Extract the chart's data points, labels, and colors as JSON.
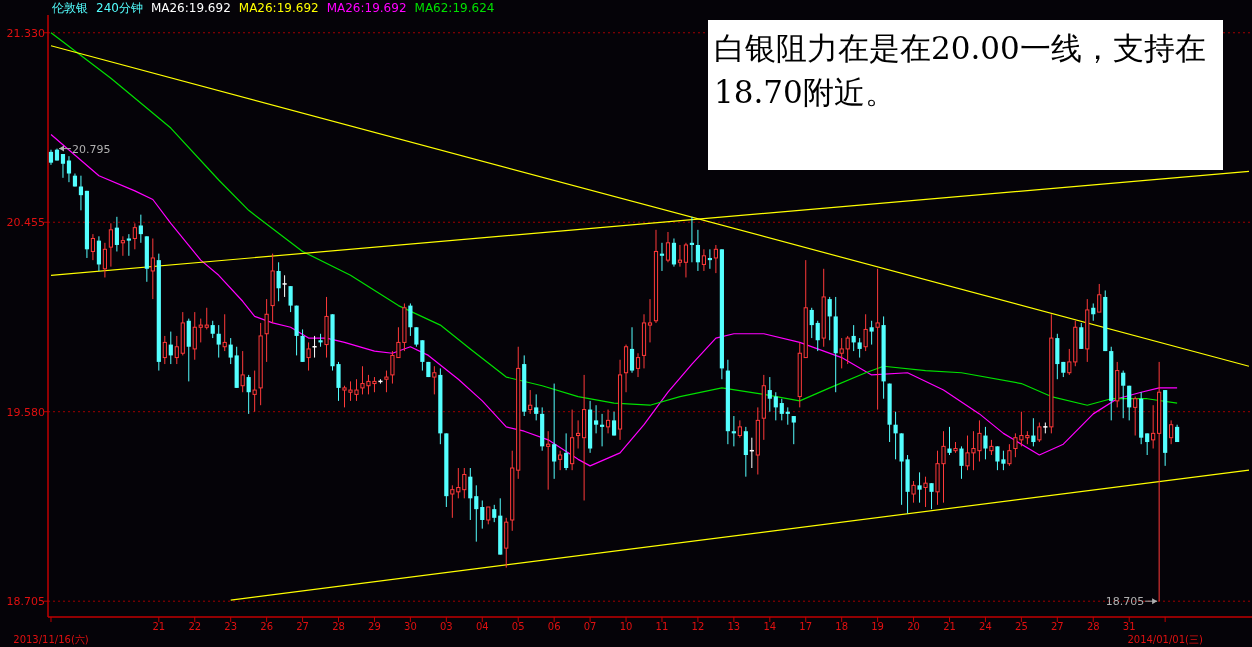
{
  "chart_data": {
    "type": "candlestick",
    "title": "伦敦银",
    "subtitle": "240分钟",
    "categories": [
      "2013/11/16(六)",
      null,
      null,
      null,
      null,
      null,
      null,
      null,
      null,
      null,
      null,
      null,
      null,
      null,
      null,
      null,
      null,
      null,
      "21",
      null,
      null,
      null,
      null,
      null,
      "22",
      null,
      null,
      null,
      null,
      null,
      "23",
      null,
      null,
      null,
      null,
      null,
      "26",
      null,
      null,
      null,
      null,
      null,
      "27",
      null,
      null,
      null,
      null,
      null,
      "28",
      null,
      null,
      null,
      null,
      null,
      "29",
      null,
      null,
      null,
      null,
      null,
      "30",
      null,
      null,
      null,
      null,
      null,
      "03",
      null,
      null,
      null,
      null,
      null,
      "04",
      null,
      null,
      null,
      null,
      null,
      "05",
      null,
      null,
      null,
      null,
      null,
      "06",
      null,
      null,
      null,
      null,
      null,
      "07",
      null,
      null,
      null,
      null,
      null,
      "10",
      null,
      null,
      null,
      null,
      null,
      "11",
      null,
      null,
      null,
      null,
      null,
      "12",
      null,
      null,
      null,
      null,
      null,
      "13",
      null,
      null,
      null,
      null,
      null,
      "14",
      null,
      null,
      null,
      null,
      null,
      "17",
      null,
      null,
      null,
      null,
      null,
      "18",
      null,
      null,
      null,
      null,
      null,
      "19",
      null,
      null,
      null,
      null,
      null,
      "20",
      null,
      null,
      null,
      null,
      null,
      "21",
      null,
      null,
      null,
      null,
      null,
      "24",
      null,
      null,
      null,
      null,
      null,
      "25",
      null,
      null,
      null,
      null,
      null,
      "27",
      null,
      null,
      null,
      null,
      null,
      "28",
      null,
      null,
      null,
      null,
      null,
      "31",
      null,
      null,
      null,
      null,
      null,
      "2014/01/01(三)",
      null,
      null,
      null,
      null,
      null,
      null,
      null,
      null,
      null,
      null,
      null,
      null,
      null,
      null
    ],
    "ohlc": [
      [
        20.78,
        20.79,
        20.72,
        20.73
      ],
      [
        20.79,
        20.795,
        20.74,
        20.74
      ],
      [
        20.77,
        20.77,
        20.66,
        20.725
      ],
      [
        20.74,
        20.76,
        20.64,
        20.68
      ],
      [
        20.67,
        20.68,
        20.62,
        20.62
      ],
      [
        20.62,
        20.67,
        20.51,
        20.58
      ],
      [
        20.6,
        20.6,
        20.29,
        20.33
      ],
      [
        20.32,
        20.4,
        20.28,
        20.38
      ],
      [
        20.37,
        20.39,
        20.23,
        20.26
      ],
      [
        20.24,
        20.36,
        20.2,
        20.33
      ],
      [
        20.34,
        20.45,
        20.25,
        20.42
      ],
      [
        20.43,
        20.48,
        20.32,
        20.35
      ],
      [
        20.36,
        20.39,
        20.3,
        20.37
      ],
      [
        20.38,
        20.4,
        20.3,
        20.37
      ],
      [
        20.38,
        20.45,
        20.33,
        20.43
      ],
      [
        20.44,
        20.49,
        20.36,
        20.4
      ],
      [
        20.39,
        20.39,
        20.18,
        20.24
      ],
      [
        20.23,
        20.38,
        20.1,
        20.29
      ],
      [
        20.28,
        20.31,
        19.77,
        19.81
      ],
      [
        19.83,
        19.93,
        19.8,
        19.9
      ],
      [
        19.89,
        19.95,
        19.8,
        19.84
      ],
      [
        19.83,
        19.93,
        19.8,
        19.88
      ],
      [
        19.85,
        20.04,
        19.84,
        19.99
      ],
      [
        20.0,
        20.01,
        19.72,
        19.88
      ],
      [
        19.87,
        20.04,
        19.82,
        19.97
      ],
      [
        19.97,
        20.01,
        19.9,
        19.98
      ],
      [
        19.97,
        20.06,
        19.96,
        19.98
      ],
      [
        19.98,
        20.0,
        19.92,
        19.94
      ],
      [
        19.94,
        19.98,
        19.83,
        19.89
      ],
      [
        19.88,
        20.03,
        19.86,
        19.9
      ],
      [
        19.89,
        19.92,
        19.8,
        19.83
      ],
      [
        19.84,
        19.88,
        19.69,
        19.69
      ],
      [
        19.7,
        19.86,
        19.67,
        19.75
      ],
      [
        19.74,
        19.75,
        19.57,
        19.67
      ],
      [
        19.66,
        19.77,
        19.58,
        19.68
      ],
      [
        19.69,
        19.99,
        19.61,
        19.93
      ],
      [
        19.94,
        20.1,
        19.81,
        20.03
      ],
      [
        20.07,
        20.31,
        19.99,
        20.23
      ],
      [
        20.23,
        20.27,
        20.09,
        20.15
      ],
      [
        20.17,
        20.21,
        20.11,
        20.17
      ],
      [
        20.16,
        20.16,
        20.04,
        20.07
      ],
      [
        20.07,
        20.07,
        19.84,
        19.93
      ],
      [
        19.93,
        19.96,
        19.81,
        19.81
      ],
      [
        19.83,
        19.9,
        19.77,
        19.87
      ],
      [
        19.88,
        19.93,
        19.83,
        19.88
      ],
      [
        19.91,
        19.94,
        19.88,
        19.9
      ],
      [
        19.89,
        20.11,
        19.83,
        20.02
      ],
      [
        20.03,
        20.03,
        19.77,
        19.79
      ],
      [
        19.8,
        19.81,
        19.63,
        19.69
      ],
      [
        19.68,
        19.7,
        19.6,
        19.69
      ],
      [
        19.67,
        19.72,
        19.63,
        19.68
      ],
      [
        19.66,
        19.73,
        19.63,
        19.68
      ],
      [
        19.69,
        19.79,
        19.66,
        19.71
      ],
      [
        19.7,
        19.75,
        19.66,
        19.72
      ],
      [
        19.71,
        19.74,
        19.67,
        19.72
      ],
      [
        19.72,
        19.73,
        19.71,
        19.72
      ],
      [
        19.73,
        19.77,
        19.67,
        19.74
      ],
      [
        19.75,
        19.86,
        19.71,
        19.84
      ],
      [
        19.83,
        19.97,
        19.83,
        19.9
      ],
      [
        19.9,
        20.08,
        19.86,
        20.06
      ],
      [
        20.07,
        20.08,
        19.93,
        19.97
      ],
      [
        19.97,
        19.97,
        19.88,
        19.89
      ],
      [
        19.91,
        19.91,
        19.77,
        19.81
      ],
      [
        19.81,
        19.81,
        19.74,
        19.74
      ],
      [
        19.74,
        19.79,
        19.66,
        19.76
      ],
      [
        19.75,
        19.78,
        19.43,
        19.48
      ],
      [
        19.48,
        19.48,
        19.14,
        19.19
      ],
      [
        19.2,
        19.24,
        19.09,
        19.22
      ],
      [
        19.21,
        19.32,
        19.18,
        19.23
      ],
      [
        19.22,
        19.32,
        19.18,
        19.29
      ],
      [
        19.28,
        19.32,
        19.08,
        19.18
      ],
      [
        19.19,
        19.24,
        18.98,
        19.13
      ],
      [
        19.14,
        19.17,
        19.04,
        19.08
      ],
      [
        19.08,
        19.14,
        19.06,
        19.14
      ],
      [
        19.13,
        19.15,
        19.07,
        19.09
      ],
      [
        19.1,
        19.18,
        18.92,
        18.92
      ],
      [
        18.95,
        19.09,
        18.86,
        19.07
      ],
      [
        19.08,
        19.4,
        19.03,
        19.32
      ],
      [
        19.31,
        19.88,
        19.27,
        19.78
      ],
      [
        19.8,
        19.84,
        19.56,
        19.58
      ],
      [
        19.59,
        19.68,
        19.57,
        19.61
      ],
      [
        19.6,
        19.66,
        19.54,
        19.57
      ],
      [
        19.57,
        19.6,
        19.4,
        19.42
      ],
      [
        19.42,
        19.49,
        19.22,
        19.43
      ],
      [
        19.43,
        19.71,
        19.27,
        19.35
      ],
      [
        19.36,
        19.4,
        19.31,
        19.38
      ],
      [
        19.39,
        19.48,
        19.31,
        19.32
      ],
      [
        19.34,
        19.59,
        19.31,
        19.46
      ],
      [
        19.47,
        19.54,
        19.41,
        19.48
      ],
      [
        19.46,
        19.75,
        19.17,
        19.59
      ],
      [
        19.59,
        19.63,
        19.39,
        19.41
      ],
      [
        19.54,
        19.61,
        19.48,
        19.52
      ],
      [
        19.52,
        19.57,
        19.42,
        19.51
      ],
      [
        19.51,
        19.59,
        19.48,
        19.54
      ],
      [
        19.54,
        19.58,
        19.47,
        19.47
      ],
      [
        19.5,
        19.82,
        19.45,
        19.75
      ],
      [
        19.76,
        19.89,
        19.67,
        19.88
      ],
      [
        19.87,
        19.97,
        19.76,
        19.77
      ],
      [
        19.78,
        19.85,
        19.74,
        19.83
      ],
      [
        19.84,
        20.03,
        19.78,
        19.99
      ],
      [
        19.98,
        20.1,
        19.9,
        19.99
      ],
      [
        20.0,
        20.42,
        19.99,
        20.32
      ],
      [
        20.31,
        20.36,
        20.23,
        20.3
      ],
      [
        20.28,
        20.41,
        20.27,
        20.36
      ],
      [
        20.36,
        20.38,
        20.25,
        20.26
      ],
      [
        20.27,
        20.35,
        20.25,
        20.28
      ],
      [
        20.27,
        20.36,
        20.2,
        20.35
      ],
      [
        20.36,
        20.48,
        20.27,
        20.35
      ],
      [
        20.35,
        20.42,
        20.23,
        20.27
      ],
      [
        20.26,
        20.33,
        20.23,
        20.3
      ],
      [
        20.29,
        20.33,
        20.24,
        20.28
      ],
      [
        20.29,
        20.35,
        20.22,
        20.33
      ],
      [
        20.33,
        20.33,
        19.73,
        19.78
      ],
      [
        19.77,
        19.82,
        19.43,
        19.49
      ],
      [
        19.49,
        19.56,
        19.42,
        19.48
      ],
      [
        19.47,
        19.54,
        19.46,
        19.51
      ],
      [
        19.49,
        19.51,
        19.28,
        19.38
      ],
      [
        19.4,
        19.46,
        19.32,
        19.4
      ],
      [
        19.38,
        19.6,
        19.29,
        19.54
      ],
      [
        19.55,
        19.75,
        19.45,
        19.7
      ],
      [
        19.68,
        19.74,
        19.58,
        19.64
      ],
      [
        19.65,
        19.67,
        19.54,
        19.6
      ],
      [
        19.62,
        19.64,
        19.54,
        19.57
      ],
      [
        19.58,
        19.6,
        19.52,
        19.57
      ],
      [
        19.56,
        19.56,
        19.43,
        19.53
      ],
      [
        19.65,
        19.9,
        19.6,
        19.85
      ],
      [
        19.83,
        20.28,
        19.83,
        20.06
      ],
      [
        20.05,
        20.06,
        19.92,
        19.98
      ],
      [
        19.99,
        20.0,
        19.86,
        19.91
      ],
      [
        19.92,
        20.24,
        19.88,
        20.11
      ],
      [
        20.1,
        20.11,
        19.91,
        20.02
      ],
      [
        20.02,
        20.11,
        19.67,
        19.85
      ],
      [
        19.85,
        19.92,
        19.78,
        19.87
      ],
      [
        19.87,
        19.93,
        19.8,
        19.92
      ],
      [
        19.93,
        19.98,
        19.86,
        19.9
      ],
      [
        19.9,
        19.92,
        19.83,
        19.87
      ],
      [
        19.88,
        20.03,
        19.86,
        19.96
      ],
      [
        19.97,
        20.0,
        19.89,
        19.95
      ],
      [
        19.97,
        20.24,
        19.59,
        19.99
      ],
      [
        19.98,
        20.02,
        19.64,
        19.72
      ],
      [
        19.71,
        19.71,
        19.44,
        19.52
      ],
      [
        19.52,
        19.58,
        19.36,
        19.48
      ],
      [
        19.48,
        19.48,
        19.15,
        19.35
      ],
      [
        19.36,
        19.38,
        19.11,
        19.21
      ],
      [
        19.2,
        19.26,
        19.16,
        19.24
      ],
      [
        19.24,
        19.3,
        19.16,
        19.22
      ],
      [
        19.23,
        19.28,
        19.14,
        19.25
      ],
      [
        19.25,
        19.25,
        19.13,
        19.21
      ],
      [
        19.21,
        19.4,
        19.15,
        19.34
      ],
      [
        19.34,
        19.49,
        19.16,
        19.42
      ],
      [
        19.41,
        19.51,
        19.38,
        19.39
      ],
      [
        19.4,
        19.44,
        19.39,
        19.41
      ],
      [
        19.41,
        19.42,
        19.27,
        19.33
      ],
      [
        19.33,
        19.47,
        19.31,
        19.39
      ],
      [
        19.39,
        19.49,
        19.31,
        19.41
      ],
      [
        19.4,
        19.54,
        19.35,
        19.48
      ],
      [
        19.47,
        19.51,
        19.36,
        19.41
      ],
      [
        19.4,
        19.45,
        19.38,
        19.42
      ],
      [
        19.42,
        19.42,
        19.31,
        19.35
      ],
      [
        19.36,
        19.4,
        19.31,
        19.34
      ],
      [
        19.34,
        19.43,
        19.33,
        19.4
      ],
      [
        19.41,
        19.48,
        19.37,
        19.46
      ],
      [
        19.45,
        19.58,
        19.42,
        19.47
      ],
      [
        19.46,
        19.49,
        19.43,
        19.47
      ],
      [
        19.47,
        19.55,
        19.42,
        19.44
      ],
      [
        19.45,
        19.53,
        19.44,
        19.51
      ],
      [
        19.51,
        19.53,
        19.48,
        19.51
      ],
      [
        19.51,
        20.03,
        19.48,
        19.92
      ],
      [
        19.92,
        19.94,
        19.73,
        19.8
      ],
      [
        19.81,
        19.81,
        19.74,
        19.76
      ],
      [
        19.76,
        19.87,
        19.75,
        19.81
      ],
      [
        19.81,
        20.0,
        19.79,
        19.97
      ],
      [
        19.97,
        19.99,
        19.87,
        19.87
      ],
      [
        19.87,
        20.1,
        19.81,
        20.05
      ],
      [
        20.06,
        20.08,
        20.0,
        20.03
      ],
      [
        20.04,
        20.17,
        20.04,
        20.12
      ],
      [
        20.11,
        20.14,
        19.86,
        19.86
      ],
      [
        19.86,
        19.88,
        19.54,
        19.63
      ],
      [
        19.63,
        19.81,
        19.6,
        19.77
      ],
      [
        19.76,
        19.77,
        19.55,
        19.7
      ],
      [
        19.7,
        19.7,
        19.54,
        19.6
      ],
      [
        19.6,
        19.65,
        19.47,
        19.64
      ],
      [
        19.64,
        19.67,
        19.43,
        19.46
      ],
      [
        19.48,
        19.48,
        19.38,
        19.44
      ],
      [
        19.45,
        19.61,
        19.41,
        19.48
      ],
      [
        19.48,
        19.81,
        18.705,
        19.67
      ],
      [
        19.68,
        19.68,
        19.33,
        19.39
      ],
      [
        19.46,
        19.54,
        19.43,
        19.52
      ],
      [
        19.51,
        19.52,
        19.44,
        19.44
      ],
      null,
      null,
      null,
      null,
      null,
      null,
      null,
      null,
      null,
      null,
      null,
      null
    ],
    "series": [
      {
        "type": "line",
        "name": "MA26:19.692",
        "color": "#ff00ff",
        "values": [
          20.86,
          null,
          null,
          null,
          null,
          null,
          null,
          null,
          20.67,
          null,
          null,
          null,
          null,
          null,
          20.6,
          null,
          null,
          20.56,
          null,
          null,
          20.45,
          null,
          null,
          null,
          null,
          20.28,
          null,
          null,
          20.21,
          null,
          null,
          null,
          20.09,
          null,
          20.02,
          null,
          null,
          19.99,
          null,
          null,
          19.97,
          null,
          null,
          19.92,
          null,
          null,
          19.92,
          null,
          null,
          19.9,
          null,
          null,
          null,
          null,
          19.86,
          null,
          null,
          19.85,
          null,
          null,
          19.88,
          null,
          null,
          19.84,
          null,
          null,
          null,
          null,
          19.73,
          null,
          null,
          null,
          19.63,
          null,
          null,
          null,
          19.51,
          null,
          null,
          19.49,
          null,
          null,
          null,
          19.45,
          null,
          null,
          null,
          null,
          19.36,
          null,
          19.33,
          null,
          null,
          null,
          null,
          19.39,
          null,
          null,
          null,
          19.52,
          null,
          null,
          null,
          19.67,
          null,
          null,
          null,
          19.8,
          null,
          null,
          null,
          19.92,
          null,
          null,
          19.94,
          null,
          null,
          null,
          null,
          19.94,
          null,
          null,
          null,
          null,
          null,
          19.9,
          null,
          null,
          null,
          null,
          null,
          null,
          19.83,
          null,
          null,
          null,
          null,
          19.75,
          null,
          null,
          null,
          null,
          null,
          19.76,
          null,
          null,
          null,
          null,
          null,
          19.68,
          null,
          null,
          null,
          null,
          null,
          19.57,
          null,
          null,
          null,
          19.48,
          null,
          null,
          null,
          null,
          null,
          19.38,
          null,
          null,
          null,
          19.43,
          null,
          null,
          null,
          null,
          19.57,
          null,
          null,
          null,
          19.64,
          null,
          null,
          null,
          19.67,
          null,
          null,
          19.69,
          null,
          null,
          19.69,
          null,
          null,
          null,
          null,
          null,
          null,
          null,
          null,
          null,
          null,
          null,
          null
        ]
      },
      {
        "type": "line",
        "name": "MA62:19.624",
        "color": "#00e000",
        "values": [
          21.33,
          null,
          null,
          null,
          null,
          null,
          null,
          null,
          null,
          null,
          21.12,
          null,
          null,
          null,
          null,
          null,
          null,
          null,
          null,
          null,
          20.89,
          null,
          null,
          null,
          null,
          null,
          null,
          null,
          20.65,
          null,
          null,
          null,
          null,
          20.51,
          null,
          null,
          null,
          null,
          null,
          null,
          null,
          null,
          20.32,
          null,
          null,
          null,
          null,
          null,
          null,
          null,
          20.21,
          null,
          null,
          null,
          null,
          null,
          null,
          null,
          20.07,
          null,
          null,
          null,
          null,
          null,
          null,
          19.98,
          null,
          null,
          null,
          null,
          19.87,
          null,
          null,
          null,
          null,
          null,
          19.74,
          null,
          null,
          null,
          null,
          null,
          19.7,
          null,
          null,
          null,
          null,
          null,
          19.65,
          null,
          null,
          null,
          null,
          null,
          19.62,
          null,
          null,
          null,
          null,
          null,
          19.61,
          null,
          null,
          null,
          null,
          19.65,
          null,
          null,
          null,
          null,
          null,
          null,
          19.69,
          null,
          null,
          null,
          null,
          null,
          null,
          19.66,
          null,
          null,
          null,
          null,
          null,
          19.63,
          null,
          null,
          null,
          null,
          19.69,
          null,
          null,
          null,
          null,
          null,
          19.76,
          null,
          null,
          19.79,
          null,
          null,
          null,
          null,
          null,
          null,
          19.77,
          null,
          null,
          null,
          null,
          null,
          19.76,
          null,
          null,
          null,
          null,
          null,
          null,
          null,
          null,
          null,
          19.71,
          null,
          null,
          null,
          null,
          19.65,
          null,
          null,
          null,
          null,
          null,
          19.61,
          null,
          null,
          null,
          19.64,
          null,
          null,
          null,
          null,
          null,
          19.64,
          null,
          null,
          null,
          null,
          19.62,
          null,
          null,
          null,
          null,
          null,
          null,
          null,
          null,
          null,
          null,
          null,
          null
        ]
      },
      {
        "type": "line",
        "color": "#ffff00",
        "values": [
          21.27,
          null,
          null,
          null,
          null,
          null,
          null,
          null,
          null,
          null,
          null,
          null,
          null,
          null,
          null,
          null,
          null,
          null,
          null,
          null,
          null,
          null,
          null,
          null,
          null,
          null,
          null,
          null,
          null,
          null,
          null,
          null,
          null,
          null,
          null,
          null,
          null,
          null,
          null,
          null,
          null,
          null,
          null,
          null,
          null,
          null,
          null,
          null,
          null,
          null,
          null,
          null,
          null,
          null,
          null,
          null,
          null,
          null,
          null,
          null,
          null,
          null,
          null,
          null,
          null,
          null,
          null,
          null,
          null,
          null,
          null,
          null,
          null,
          null,
          null,
          null,
          null,
          null,
          null,
          null,
          null,
          null,
          null,
          null,
          null,
          null,
          null,
          null,
          null,
          null,
          null,
          null,
          null,
          null,
          null,
          null,
          null,
          null,
          null,
          null,
          null,
          null,
          null,
          null,
          null,
          null,
          null,
          null,
          null,
          null,
          null,
          null,
          null,
          null,
          null,
          null,
          null,
          null,
          null,
          null,
          null,
          null,
          null,
          null,
          null,
          null,
          null,
          null,
          null,
          null,
          null,
          null,
          null,
          null,
          null,
          null,
          null,
          null,
          null,
          null,
          null,
          null,
          null,
          null,
          null,
          null,
          null,
          null,
          null,
          null,
          null,
          null,
          null,
          null,
          null,
          null,
          null,
          null,
          null,
          null,
          null,
          null,
          null,
          null,
          null,
          null,
          null,
          null,
          null,
          null,
          null,
          null,
          null,
          null,
          null,
          null,
          null,
          null,
          null,
          null,
          null,
          null,
          null,
          null,
          null,
          null,
          null,
          null,
          null,
          null,
          null,
          null,
          null,
          null,
          null,
          null,
          null,
          null,
          null,
          null,
          19.79
        ]
      },
      {
        "type": "line",
        "color": "#ffff00",
        "values": [
          20.21,
          null,
          null,
          null,
          null,
          null,
          null,
          null,
          null,
          null,
          null,
          null,
          null,
          null,
          null,
          null,
          null,
          null,
          null,
          null,
          null,
          null,
          null,
          null,
          null,
          null,
          null,
          null,
          null,
          null,
          null,
          null,
          null,
          null,
          null,
          null,
          null,
          null,
          null,
          null,
          null,
          null,
          null,
          null,
          null,
          null,
          null,
          null,
          null,
          null,
          null,
          null,
          null,
          null,
          null,
          null,
          null,
          null,
          null,
          null,
          null,
          null,
          null,
          null,
          null,
          null,
          null,
          null,
          null,
          null,
          null,
          null,
          null,
          null,
          null,
          null,
          null,
          null,
          null,
          null,
          null,
          null,
          null,
          null,
          null,
          null,
          null,
          null,
          null,
          null,
          null,
          null,
          null,
          null,
          null,
          null,
          null,
          null,
          null,
          null,
          null,
          null,
          null,
          null,
          null,
          null,
          null,
          null,
          null,
          null,
          null,
          null,
          null,
          null,
          null,
          null,
          null,
          null,
          null,
          null,
          null,
          null,
          null,
          null,
          null,
          null,
          null,
          null,
          null,
          null,
          null,
          null,
          null,
          null,
          null,
          null,
          null,
          null,
          null,
          null,
          null,
          null,
          null,
          null,
          null,
          null,
          null,
          null,
          null,
          null,
          null,
          null,
          null,
          null,
          null,
          null,
          null,
          null,
          null,
          null,
          null,
          null,
          null,
          null,
          null,
          null,
          null,
          null,
          null,
          null,
          null,
          null,
          null,
          null,
          null,
          null,
          null,
          null,
          null,
          null,
          null,
          null,
          null,
          null,
          null,
          null,
          null,
          null,
          null,
          null,
          null,
          null,
          null,
          null,
          null,
          null,
          null,
          null,
          null,
          null,
          20.69
        ]
      },
      {
        "type": "line",
        "color": "#ffff00",
        "values": [
          null,
          null,
          null,
          null,
          null,
          null,
          null,
          null,
          null,
          null,
          null,
          null,
          null,
          null,
          null,
          null,
          null,
          null,
          null,
          null,
          null,
          null,
          null,
          null,
          null,
          null,
          null,
          null,
          null,
          null,
          18.71,
          null,
          null,
          null,
          null,
          null,
          null,
          null,
          null,
          null,
          null,
          null,
          null,
          null,
          null,
          null,
          null,
          null,
          null,
          null,
          null,
          null,
          null,
          null,
          null,
          null,
          null,
          null,
          null,
          null,
          null,
          null,
          null,
          null,
          null,
          null,
          null,
          null,
          null,
          null,
          null,
          null,
          null,
          null,
          null,
          null,
          null,
          null,
          null,
          null,
          null,
          null,
          null,
          null,
          null,
          null,
          null,
          null,
          null,
          null,
          null,
          null,
          null,
          null,
          null,
          null,
          null,
          null,
          null,
          null,
          null,
          null,
          null,
          null,
          null,
          null,
          null,
          null,
          null,
          null,
          null,
          null,
          null,
          null,
          null,
          null,
          null,
          null,
          null,
          null,
          null,
          null,
          null,
          null,
          null,
          null,
          null,
          null,
          null,
          null,
          null,
          null,
          null,
          null,
          null,
          null,
          null,
          null,
          null,
          null,
          null,
          null,
          null,
          null,
          null,
          null,
          null,
          null,
          null,
          null,
          null,
          null,
          null,
          null,
          null,
          null,
          null,
          null,
          null,
          null,
          null,
          null,
          null,
          null,
          null,
          null,
          null,
          null,
          null,
          null,
          null,
          null,
          null,
          null,
          null,
          null,
          null,
          null,
          null,
          null,
          null,
          null,
          null,
          null,
          null,
          null,
          null,
          null,
          null,
          null,
          null,
          null,
          null,
          null,
          null,
          null,
          null,
          null,
          null,
          null,
          19.31
        ]
      }
    ],
    "ylim": [
      18.632,
      21.412
    ],
    "yticks": [
      {
        "value": 21.33,
        "label": "21.330"
      },
      {
        "value": 20.455,
        "label": "20.455"
      },
      {
        "value": 19.58,
        "label": "19.580"
      },
      {
        "value": 18.705,
        "label": "18.705"
      }
    ],
    "grid": "y",
    "legend": "top left",
    "annotations": [
      "MA26:19.692",
      "MA26:19.692",
      "白银阻力在是在20.00一线，支持在18.70附近。",
      "20.795",
      "18.705"
    ]
  }
}
